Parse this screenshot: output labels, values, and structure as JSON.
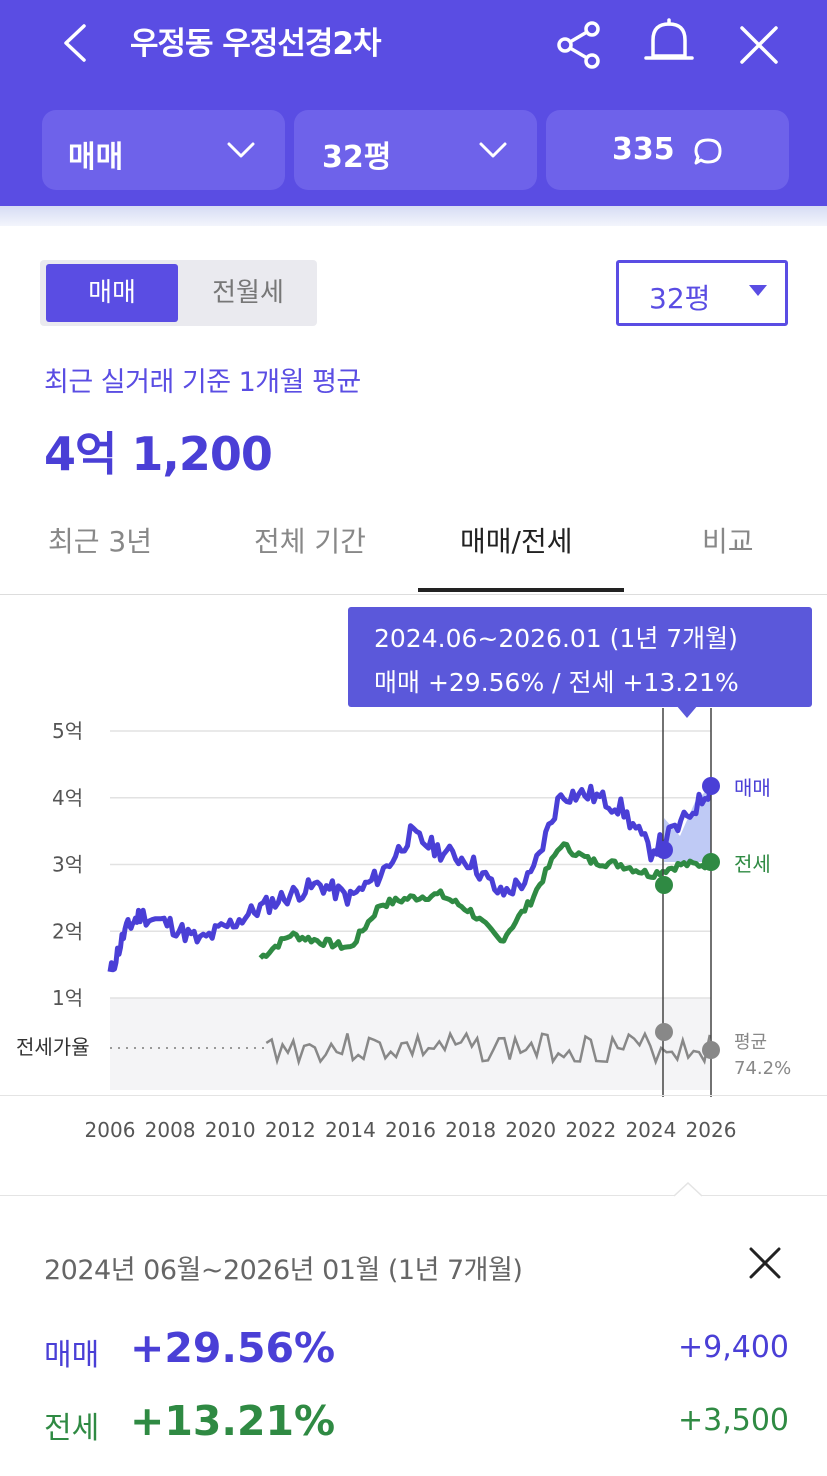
{
  "header": {
    "back_icon": "chevron-left-icon",
    "title": "우정동 우정선경2차",
    "share_icon": "share-icon",
    "bell_icon": "bell-icon",
    "close_icon": "close-icon",
    "background": "#5a4de3"
  },
  "selectors": {
    "trade_type": "매매",
    "area": "32평",
    "comments": "335",
    "comment_icon": "chat-bubble-icon"
  },
  "segment": {
    "sale": "매매",
    "rent": "전월세",
    "selected": "매매"
  },
  "area_dropdown": "32평",
  "summary": {
    "basis": "최근 실거래 기준 1개월 평균",
    "price": "4억 1,200"
  },
  "tabs": [
    {
      "label": "최근 3년"
    },
    {
      "label": "전체 기간"
    },
    {
      "label": "매매/전세",
      "active": true
    },
    {
      "label": "비교"
    }
  ],
  "tooltip": {
    "line1": "2024.06~2026.01 (1년 7개월)",
    "line2": "매매 +29.56%  /  전세 +13.21%"
  },
  "chart_data": {
    "type": "line",
    "y_axis_labels": [
      "5억",
      "4억",
      "3억",
      "2억",
      "1억"
    ],
    "ratio_label": "전세가율",
    "x_ticks": [
      "2006",
      "2008",
      "2010",
      "2012",
      "2014",
      "2016",
      "2018",
      "2020",
      "2022",
      "2024",
      "2026"
    ],
    "grid": true,
    "colors": {
      "sale": "#4a3fd6",
      "jeonse": "#2f8a43",
      "ratio": "#777777"
    },
    "series": [
      {
        "name": "매매",
        "x": [
          2006.0,
          2006.5,
          2007,
          2008,
          2009,
          2010,
          2011,
          2012,
          2013,
          2014,
          2015,
          2016,
          2017,
          2018,
          2019,
          2020,
          2021,
          2022,
          2023,
          2024,
          2025,
          2026
        ],
        "values": [
          1.35,
          2.0,
          2.25,
          2.1,
          1.85,
          2.1,
          2.35,
          2.55,
          2.7,
          2.5,
          2.85,
          3.45,
          3.2,
          3.05,
          2.55,
          2.8,
          4.05,
          4.05,
          3.85,
          3.2,
          3.6,
          4.15
        ]
      },
      {
        "name": "전세",
        "x": [
          2011,
          2012,
          2013,
          2014,
          2015,
          2016,
          2017,
          2018,
          2019,
          2020,
          2021,
          2022,
          2023,
          2024,
          2025,
          2026
        ],
        "values": [
          1.6,
          1.95,
          1.85,
          1.75,
          2.4,
          2.5,
          2.55,
          2.3,
          1.85,
          2.45,
          3.3,
          3.05,
          3.0,
          2.85,
          3.0,
          3.0
        ]
      }
    ],
    "series_labels": {
      "sale": "매매",
      "jeonse": "전세"
    },
    "ratio_avg_label": "평균",
    "ratio_avg_value": "74.2%",
    "ratio_avg": 74.2,
    "highlight_range": [
      "2024.06",
      "2026.01"
    ]
  },
  "period_summary": {
    "period": "2024년 06월~2026년 01월 (1년 7개월)",
    "sale_label": "매매",
    "sale_pct": "+29.56%",
    "sale_amount": "+9,400",
    "rent_label": "전세",
    "rent_pct": "+13.21%",
    "rent_amount": "+3,500",
    "close_icon": "close-icon"
  }
}
